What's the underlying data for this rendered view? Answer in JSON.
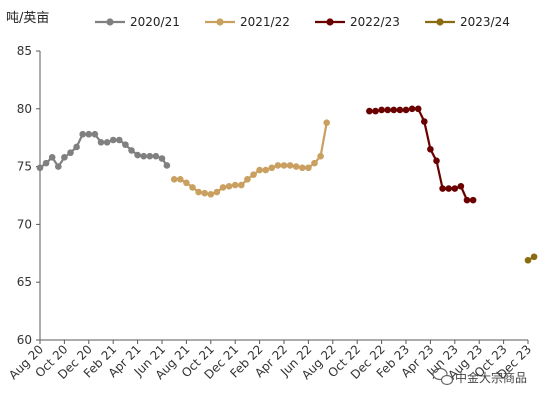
{
  "chart_data": {
    "type": "line",
    "unit_label": "吨/英亩",
    "ylim": [
      60,
      85
    ],
    "yticks": [
      60,
      65,
      70,
      75,
      80,
      85
    ],
    "grid": false,
    "legend_position": "top",
    "xtick_labels": [
      "Aug 20",
      "Oct 20",
      "Dec 20",
      "Feb 21",
      "Apr 21",
      "Jun 21",
      "Aug 21",
      "Oct 21",
      "Dec 21",
      "Feb 22",
      "Apr 22",
      "Jun 22",
      "Aug 22",
      "Oct 22",
      "Dec 22",
      "Feb 23",
      "Apr 23",
      "Jun 23",
      "Aug 23",
      "Oct 23",
      "Dec 23"
    ],
    "series": [
      {
        "name": "2020/21",
        "color": "#808080",
        "points": [
          [
            0.0,
            74.9
          ],
          [
            0.5,
            75.3
          ],
          [
            1.0,
            75.8
          ],
          [
            1.5,
            75.0
          ],
          [
            2.0,
            75.8
          ],
          [
            2.5,
            76.2
          ],
          [
            3.0,
            76.7
          ],
          [
            3.5,
            77.8
          ],
          [
            4.0,
            77.8
          ],
          [
            4.5,
            77.8
          ],
          [
            5.0,
            77.1
          ],
          [
            5.5,
            77.1
          ],
          [
            6.0,
            77.3
          ],
          [
            6.5,
            77.3
          ],
          [
            7.0,
            76.9
          ],
          [
            7.5,
            76.4
          ],
          [
            8.0,
            76.0
          ],
          [
            8.5,
            75.9
          ],
          [
            9.0,
            75.9
          ],
          [
            9.5,
            75.9
          ],
          [
            10.0,
            75.7
          ],
          [
            10.4,
            75.1
          ]
        ]
      },
      {
        "name": "2021/22",
        "color": "#C9A060",
        "points": [
          [
            11.0,
            73.9
          ],
          [
            11.5,
            73.9
          ],
          [
            12.0,
            73.6
          ],
          [
            12.5,
            73.2
          ],
          [
            13.0,
            72.8
          ],
          [
            13.5,
            72.7
          ],
          [
            14.0,
            72.6
          ],
          [
            14.5,
            72.8
          ],
          [
            15.0,
            73.2
          ],
          [
            15.5,
            73.3
          ],
          [
            16.0,
            73.4
          ],
          [
            16.5,
            73.4
          ],
          [
            17.0,
            73.9
          ],
          [
            17.5,
            74.3
          ],
          [
            18.0,
            74.7
          ],
          [
            18.5,
            74.7
          ],
          [
            19.0,
            74.9
          ],
          [
            19.5,
            75.1
          ],
          [
            20.0,
            75.1
          ],
          [
            20.5,
            75.1
          ],
          [
            21.0,
            75.0
          ],
          [
            21.5,
            74.9
          ],
          [
            22.0,
            74.9
          ],
          [
            22.5,
            75.3
          ],
          [
            23.0,
            75.9
          ],
          [
            23.5,
            78.8
          ]
        ]
      },
      {
        "name": "2022/23",
        "color": "#6B0000",
        "points": [
          [
            27.0,
            79.8
          ],
          [
            27.5,
            79.8
          ],
          [
            28.0,
            79.9
          ],
          [
            28.5,
            79.9
          ],
          [
            29.0,
            79.9
          ],
          [
            29.5,
            79.9
          ],
          [
            30.0,
            79.9
          ],
          [
            30.5,
            80.0
          ],
          [
            31.0,
            80.0
          ],
          [
            31.5,
            78.9
          ],
          [
            32.0,
            76.5
          ],
          [
            32.5,
            75.5
          ],
          [
            33.0,
            73.1
          ],
          [
            33.5,
            73.1
          ],
          [
            34.0,
            73.1
          ],
          [
            34.5,
            73.3
          ],
          [
            35.0,
            72.1
          ],
          [
            35.5,
            72.1
          ]
        ]
      },
      {
        "name": "2023/24",
        "color": "#8B6B10",
        "points": [
          [
            40.0,
            66.9
          ],
          [
            40.5,
            67.2
          ]
        ]
      }
    ]
  },
  "watermark": {
    "text": "中金大宗商品"
  }
}
